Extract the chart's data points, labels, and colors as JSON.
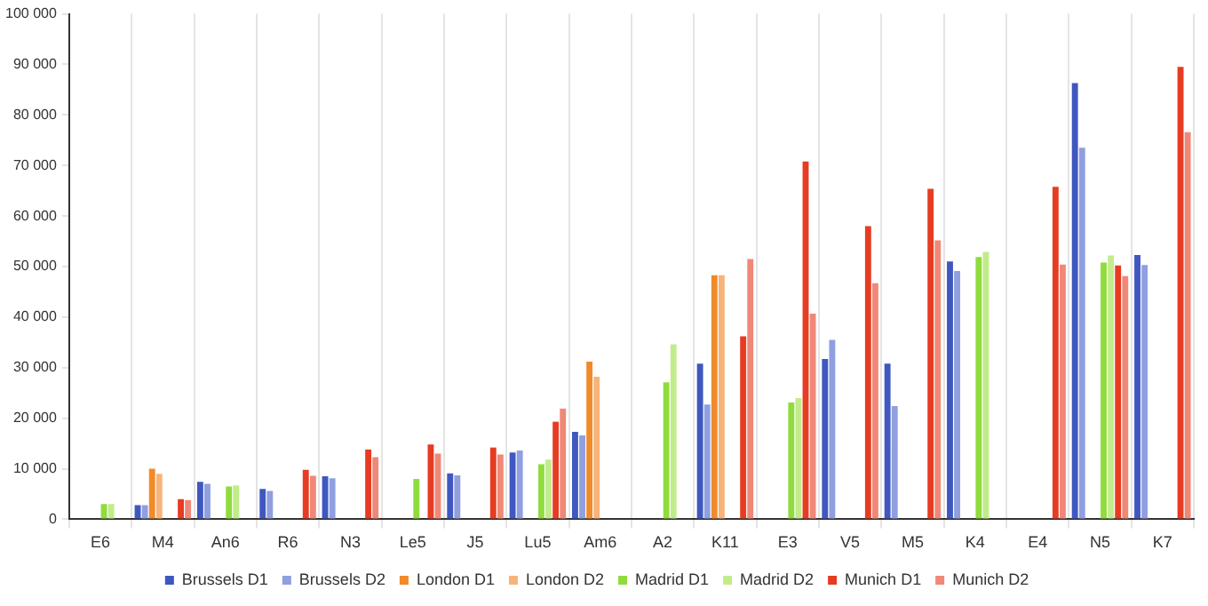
{
  "chart_data": {
    "type": "bar",
    "categories": [
      "E6",
      "M4",
      "An6",
      "R6",
      "N3",
      "Le5",
      "J5",
      "Lu5",
      "Am6",
      "A2",
      "K11",
      "E3",
      "V5",
      "M5",
      "K4",
      "E4",
      "N5",
      "K7"
    ],
    "series": [
      {
        "name": "Brussels D1",
        "color": "#3f57c0",
        "values": [
          null,
          2800,
          7400,
          6000,
          8500,
          null,
          9100,
          13200,
          17300,
          null,
          30800,
          null,
          31700,
          30800,
          51000,
          null,
          86300,
          52300
        ]
      },
      {
        "name": "Brussels D2",
        "color": "#8f9fe0",
        "values": [
          null,
          2800,
          7000,
          5600,
          8100,
          null,
          8700,
          13600,
          16600,
          null,
          22700,
          null,
          35500,
          22400,
          49100,
          null,
          73500,
          50300
        ]
      },
      {
        "name": "London D1",
        "color": "#f08a2a",
        "values": [
          null,
          10000,
          null,
          null,
          null,
          null,
          null,
          null,
          31200,
          null,
          48300,
          null,
          null,
          null,
          null,
          null,
          null,
          null
        ]
      },
      {
        "name": "London D2",
        "color": "#f7b47a",
        "values": [
          null,
          9000,
          null,
          null,
          null,
          null,
          null,
          null,
          28200,
          null,
          48300,
          null,
          null,
          null,
          null,
          null,
          null,
          null
        ]
      },
      {
        "name": "Madrid D1",
        "color": "#8fdc3c",
        "values": [
          3000,
          null,
          6500,
          null,
          null,
          8000,
          null,
          10900,
          null,
          27100,
          null,
          23100,
          null,
          null,
          51900,
          null,
          50800,
          null
        ]
      },
      {
        "name": "Madrid D2",
        "color": "#c2ec8a",
        "values": [
          3000,
          null,
          6700,
          null,
          null,
          null,
          null,
          11800,
          null,
          34600,
          null,
          24000,
          null,
          null,
          52900,
          null,
          52200,
          null
        ]
      },
      {
        "name": "Munich D1",
        "color": "#e63c22",
        "values": [
          null,
          4000,
          null,
          9800,
          13800,
          14800,
          14200,
          19300,
          null,
          null,
          36200,
          70800,
          58000,
          65400,
          null,
          65800,
          50200,
          89500
        ]
      },
      {
        "name": "Munich D2",
        "color": "#f08878",
        "values": [
          null,
          3800,
          null,
          8600,
          12300,
          13000,
          12800,
          21900,
          null,
          null,
          51500,
          40700,
          46700,
          55200,
          null,
          50400,
          48100,
          76600
        ]
      }
    ],
    "ylim": [
      0,
      100000
    ],
    "yticks": [
      {
        "value": 0,
        "label": "0"
      },
      {
        "value": 10000,
        "label": "10 000"
      },
      {
        "value": 20000,
        "label": "20 000"
      },
      {
        "value": 30000,
        "label": "30 000"
      },
      {
        "value": 40000,
        "label": "40 000"
      },
      {
        "value": 50000,
        "label": "50 000"
      },
      {
        "value": 60000,
        "label": "60 000"
      },
      {
        "value": 70000,
        "label": "70 000"
      },
      {
        "value": 80000,
        "label": "80 000"
      },
      {
        "value": 90000,
        "label": "90 000"
      },
      {
        "value": 100000,
        "label": "100 000"
      }
    ],
    "grid": "x",
    "legend": "bottom"
  }
}
